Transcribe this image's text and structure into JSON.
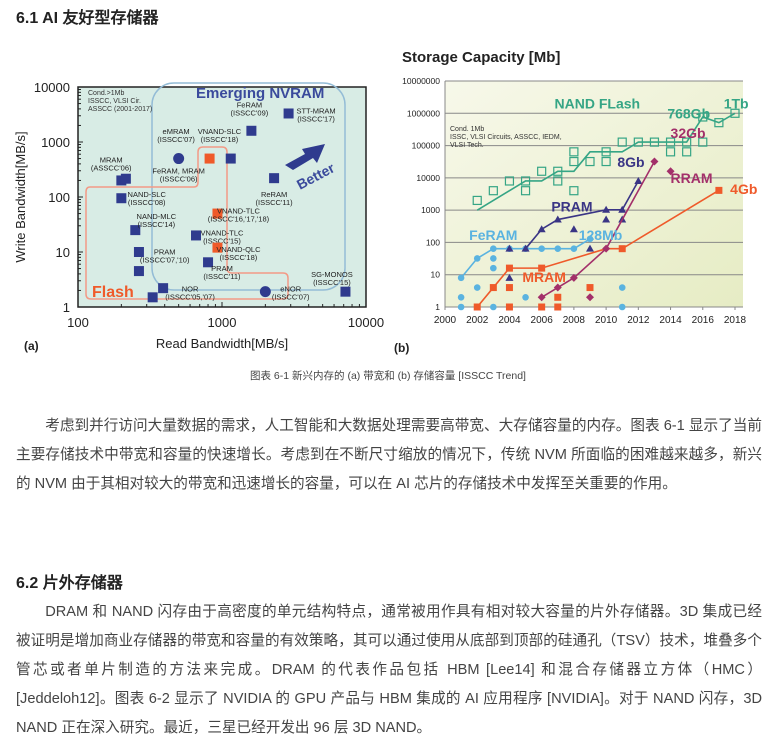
{
  "section1": {
    "heading": "6.1 AI 友好型存储器"
  },
  "figure": {
    "caption": "图表 6-1 新兴内存的 (a) 带宽和 (b) 存储容量 [ISSCC Trend]",
    "panel_a_label": "(a)",
    "panel_b_label": "(b)"
  },
  "chart_data": [
    {
      "type": "scatter",
      "title": "",
      "xlabel": "Read Bandwidth[MB/s]",
      "ylabel": "Write Bandwidth[MB/s]",
      "xscale": "log",
      "yscale": "log",
      "xlim": [
        100,
        10000
      ],
      "ylim": [
        1,
        10000
      ],
      "xticks": [
        "100",
        "1000",
        "10000"
      ],
      "yticks": [
        "1",
        "10",
        "100",
        "1000",
        "10000"
      ],
      "note": [
        "Cond.>1Mb",
        "ISSCC, VLSI Cir.",
        "ASSCC (2001-2017)"
      ],
      "regions": {
        "emerging": "Emerging NVRAM",
        "flash": "Flash",
        "arrow": "Better"
      },
      "colors": {
        "blue": "#2f3b8e",
        "orange": "#ef5a2a",
        "bg": "#d8ece5",
        "emerging": "#94bcd6",
        "flash": "#f39a86",
        "emerging_text": "#3a4a9c"
      },
      "points": [
        {
          "x": 200,
          "y": 200,
          "shape": "square",
          "color": "blue"
        },
        {
          "x": 215,
          "y": 215,
          "shape": "square",
          "color": "blue",
          "label": [
            "MRAM",
            "(ASSCC'06)"
          ],
          "lx": 170,
          "ly": 420
        },
        {
          "x": 500,
          "y": 500,
          "shape": "circle",
          "color": "blue",
          "label": [
            "eMRAM",
            "(ISSCC'07)"
          ],
          "lx": 480,
          "ly": 1400
        },
        {
          "x": 820,
          "y": 500,
          "shape": "square",
          "color": "orange",
          "label": [
            "VNAND-SLC",
            "(ISSCC'18)"
          ],
          "lx": 960,
          "ly": 1400
        },
        {
          "x": 1150,
          "y": 500,
          "shape": "square",
          "color": "blue",
          "label": [
            "FeRAM, MRAM",
            "(ISSCC'06)"
          ],
          "lx": 500,
          "ly": 270
        },
        {
          "x": 1600,
          "y": 1600,
          "shape": "square",
          "color": "blue",
          "label": [
            "FeRAM",
            "(ISSCC'09)"
          ],
          "lx": 1550,
          "ly": 4200
        },
        {
          "x": 2900,
          "y": 3300,
          "shape": "square",
          "color": "blue",
          "label": [
            "STT-MRAM",
            "(ISSCC'17)"
          ],
          "lx": 4500,
          "ly": 3300
        },
        {
          "x": 2300,
          "y": 220,
          "shape": "square",
          "color": "blue",
          "label": [
            "ReRAM",
            "(ISSCC'11)"
          ],
          "lx": 2300,
          "ly": 100
        },
        {
          "x": 200,
          "y": 95,
          "shape": "square",
          "color": "blue",
          "label": [
            "NAND-SLC",
            "(ISSCC'08)"
          ],
          "lx": 300,
          "ly": 100
        },
        {
          "x": 250,
          "y": 25,
          "shape": "square",
          "color": "blue",
          "label": [
            "NAND-MLC",
            "(ISSCC'14)"
          ],
          "lx": 350,
          "ly": 40
        },
        {
          "x": 930,
          "y": 50,
          "shape": "square",
          "color": "orange",
          "label": [
            "VNAND-TLC",
            "(ISSCC'16,'17,'18)"
          ],
          "lx": 1300,
          "ly": 50
        },
        {
          "x": 660,
          "y": 20,
          "shape": "square",
          "color": "blue",
          "label": [
            "VNAND-TLC",
            "(ISSCC'15)"
          ],
          "lx": 1000,
          "ly": 20
        },
        {
          "x": 930,
          "y": 12,
          "shape": "square",
          "color": "orange",
          "label": [
            "VNAND-QLC",
            "(ISSCC'18)"
          ],
          "lx": 1300,
          "ly": 10
        },
        {
          "x": 265,
          "y": 10,
          "shape": "square",
          "color": "blue",
          "label": [
            "PRAM",
            "(ISSCC'07,'10)"
          ],
          "lx": 400,
          "ly": 9
        },
        {
          "x": 265,
          "y": 4.5,
          "shape": "square",
          "color": "blue"
        },
        {
          "x": 800,
          "y": 6.5,
          "shape": "square",
          "color": "blue",
          "label": [
            "PRAM",
            "(ISSCC'11)"
          ],
          "lx": 1000,
          "ly": 4.5
        },
        {
          "x": 330,
          "y": 1.5,
          "shape": "square",
          "color": "blue"
        },
        {
          "x": 390,
          "y": 2.2,
          "shape": "square",
          "color": "blue",
          "label": [
            "NOR",
            "(ISSCC'05,'07)"
          ],
          "lx": 600,
          "ly": 1.9
        },
        {
          "x": 2000,
          "y": 1.9,
          "shape": "circle",
          "color": "blue",
          "label": [
            "eNOR",
            "(ISSCC'07)"
          ],
          "lx": 3000,
          "ly": 1.9
        },
        {
          "x": 7200,
          "y": 1.9,
          "shape": "square",
          "color": "blue",
          "label": [
            "SG-MONOS",
            "(ISSCC'15)"
          ],
          "lx": 5800,
          "ly": 3.5
        }
      ]
    },
    {
      "type": "line",
      "title": "Storage Capacity [Mb]",
      "xlabel": "",
      "ylabel": "",
      "yscale": "log",
      "xlim": [
        2000,
        2018
      ],
      "ylim": [
        1,
        10000000
      ],
      "xticks": [
        "2000",
        "2002",
        "2004",
        "2006",
        "2008",
        "2010",
        "2012",
        "2014",
        "2016",
        "2018"
      ],
      "yticks": [
        "1",
        "10",
        "100",
        "1000",
        "10000",
        "100000",
        "1000000",
        "10000000"
      ],
      "grid": true,
      "note": [
        "Cond. 1Mb",
        "ISSC, VLSI Circuits, ASSCC, IEDM,",
        "VLSI Tech."
      ],
      "series": [
        {
          "name": "NAND FLash",
          "color": "#35a585",
          "marker": "open-square",
          "line": [
            [
              2002,
              1000
            ],
            [
              2005,
              8000
            ],
            [
              2006,
              8000
            ],
            [
              2007,
              16000
            ],
            [
              2008,
              16000
            ],
            [
              2009,
              64000
            ],
            [
              2011,
              64000
            ],
            [
              2012,
              128000
            ],
            [
              2015,
              128000
            ],
            [
              2016,
              768000
            ],
            [
              2017,
              512000
            ],
            [
              2018,
              1000000
            ]
          ],
          "points": [
            [
              2002,
              2000
            ],
            [
              2003,
              4000
            ],
            [
              2004,
              8000
            ],
            [
              2005,
              8000
            ],
            [
              2005,
              4000
            ],
            [
              2006,
              16000
            ],
            [
              2007,
              16000
            ],
            [
              2007,
              8000
            ],
            [
              2008,
              64000
            ],
            [
              2008,
              32000
            ],
            [
              2008,
              4000
            ],
            [
              2009,
              32000
            ],
            [
              2010,
              64000
            ],
            [
              2010,
              32000
            ],
            [
              2011,
              128000
            ],
            [
              2012,
              128000
            ],
            [
              2013,
              128000
            ],
            [
              2014,
              128000
            ],
            [
              2014,
              64000
            ],
            [
              2015,
              128000
            ],
            [
              2015,
              64000
            ],
            [
              2016,
              768000
            ],
            [
              2016,
              128000
            ],
            [
              2017,
              512000
            ],
            [
              2018,
              1000000
            ]
          ]
        },
        {
          "name": "FeRAM",
          "color": "#5ab3e0",
          "marker": "circle",
          "line": [
            [
              2001,
              8
            ],
            [
              2002,
              32
            ],
            [
              2003,
              64
            ],
            [
              2008,
              64
            ],
            [
              2009,
              128
            ]
          ],
          "points": [
            [
              2001,
              8
            ],
            [
              2001,
              2
            ],
            [
              2001,
              1
            ],
            [
              2002,
              32
            ],
            [
              2002,
              4
            ],
            [
              2003,
              64
            ],
            [
              2003,
              32
            ],
            [
              2003,
              16
            ],
            [
              2003,
              1
            ],
            [
              2004,
              64
            ],
            [
              2005,
              2
            ],
            [
              2005,
              64
            ],
            [
              2006,
              64
            ],
            [
              2007,
              64
            ],
            [
              2008,
              64
            ],
            [
              2009,
              128
            ],
            [
              2011,
              4
            ],
            [
              2011,
              1
            ]
          ]
        },
        {
          "name": "PRAM",
          "color": "#3a3585",
          "marker": "triangle",
          "line": [
            [
              2005,
              64
            ],
            [
              2006,
              256
            ],
            [
              2007,
              512
            ],
            [
              2010,
              1024
            ],
            [
              2011,
              1024
            ],
            [
              2012,
              8000
            ]
          ],
          "points": [
            [
              2004,
              64
            ],
            [
              2004,
              8
            ],
            [
              2005,
              64
            ],
            [
              2006,
              256
            ],
            [
              2007,
              512
            ],
            [
              2008,
              256
            ],
            [
              2009,
              64
            ],
            [
              2010,
              1024
            ],
            [
              2010,
              512
            ],
            [
              2011,
              1024
            ],
            [
              2011,
              512
            ],
            [
              2012,
              8000
            ]
          ]
        },
        {
          "name": "MRAM",
          "color": "#ef5a2a",
          "marker": "square",
          "line": [
            [
              2002,
              1
            ],
            [
              2003,
              4
            ],
            [
              2004,
              16
            ],
            [
              2006,
              16
            ],
            [
              2010,
              64
            ],
            [
              2011,
              64
            ],
            [
              2017,
              4096
            ]
          ],
          "points": [
            [
              2002,
              1
            ],
            [
              2003,
              4
            ],
            [
              2004,
              16
            ],
            [
              2004,
              4
            ],
            [
              2004,
              1
            ],
            [
              2006,
              16
            ],
            [
              2006,
              1
            ],
            [
              2007,
              2
            ],
            [
              2007,
              1
            ],
            [
              2009,
              4
            ],
            [
              2011,
              64
            ],
            [
              2017,
              4096
            ]
          ]
        },
        {
          "name": "RRAM",
          "color": "#a3306a",
          "marker": "diamond",
          "line": [
            [
              2006,
              2
            ],
            [
              2007,
              4
            ],
            [
              2008,
              8
            ],
            [
              2010,
              64
            ],
            [
              2013,
              32000
            ]
          ],
          "points": [
            [
              2006,
              2
            ],
            [
              2007,
              4
            ],
            [
              2008,
              8
            ],
            [
              2009,
              2
            ],
            [
              2010,
              64
            ],
            [
              2013,
              32000
            ],
            [
              2014,
              16000
            ]
          ]
        }
      ],
      "annotations": [
        {
          "text": "NAND FLash",
          "x": 2006.8,
          "y": 1400000,
          "color": "#35a585",
          "size": 14
        },
        {
          "text": "768Gb",
          "x": 2013.8,
          "y": 700000,
          "color": "#35a585",
          "size": 14
        },
        {
          "text": "1Tb",
          "x": 2017.3,
          "y": 1400000,
          "color": "#35a585",
          "size": 14
        },
        {
          "text": "32Gb",
          "x": 2014.0,
          "y": 170000,
          "color": "#a3306a",
          "size": 14
        },
        {
          "text": "8Gb",
          "x": 2010.7,
          "y": 22000,
          "color": "#3a3585",
          "size": 14
        },
        {
          "text": "RRAM",
          "x": 2014.0,
          "y": 7000,
          "color": "#a3306a",
          "size": 14
        },
        {
          "text": "4Gb",
          "x": 2017.7,
          "y": 3200,
          "color": "#ef5a2a",
          "size": 14
        },
        {
          "text": "PRAM",
          "x": 2006.6,
          "y": 900,
          "color": "#3a3585",
          "size": 14
        },
        {
          "text": "FeRAM",
          "x": 2001.5,
          "y": 120,
          "color": "#5ab3e0",
          "size": 14
        },
        {
          "text": "128Mb",
          "x": 2008.3,
          "y": 120,
          "color": "#5ab3e0",
          "size": 14
        },
        {
          "text": "MRAM",
          "x": 2004.8,
          "y": 6,
          "color": "#ef5a2a",
          "size": 14
        }
      ]
    }
  ],
  "para1": "考虑到并行访问大量数据的需求，人工智能和大数据处理需要高带宽、大存储容量的内存。图表 6-1 显示了当前主要存储技术中带宽和容量的快速增长。考虑到在不断尺寸缩放的情况下，传统 NVM 所面临的困难越来越多，新兴的 NVM 由于其相对较大的带宽和迅速增长的容量，可以在 AI 芯片的存储技术中发挥至关重要的作用。",
  "section2": {
    "heading": "6.2 片外存储器"
  },
  "para2": "DRAM 和 NAND 闪存由于高密度的单元结构特点，通常被用作具有相对较大容量的片外存储器。3D 集成已经被证明是增加商业存储器的带宽和容量的有效策略，其可以通过使用从底部到顶部的硅通孔（TSV）技术，堆叠多个管芯或者单片制造的方法来完成。DRAM 的代表作品包括 HBM [Lee14] 和混合存储器立方体（HMC）[Jeddeloh12]。图表 6-2 显示了 NVIDIA 的 GPU 产品与 HBM 集成的 AI 应用程序 [NVIDIA]。对于 NAND 闪存，3D NAND 正在深入研究。最近，三星已经开发出 96 层 3D NAND。"
}
